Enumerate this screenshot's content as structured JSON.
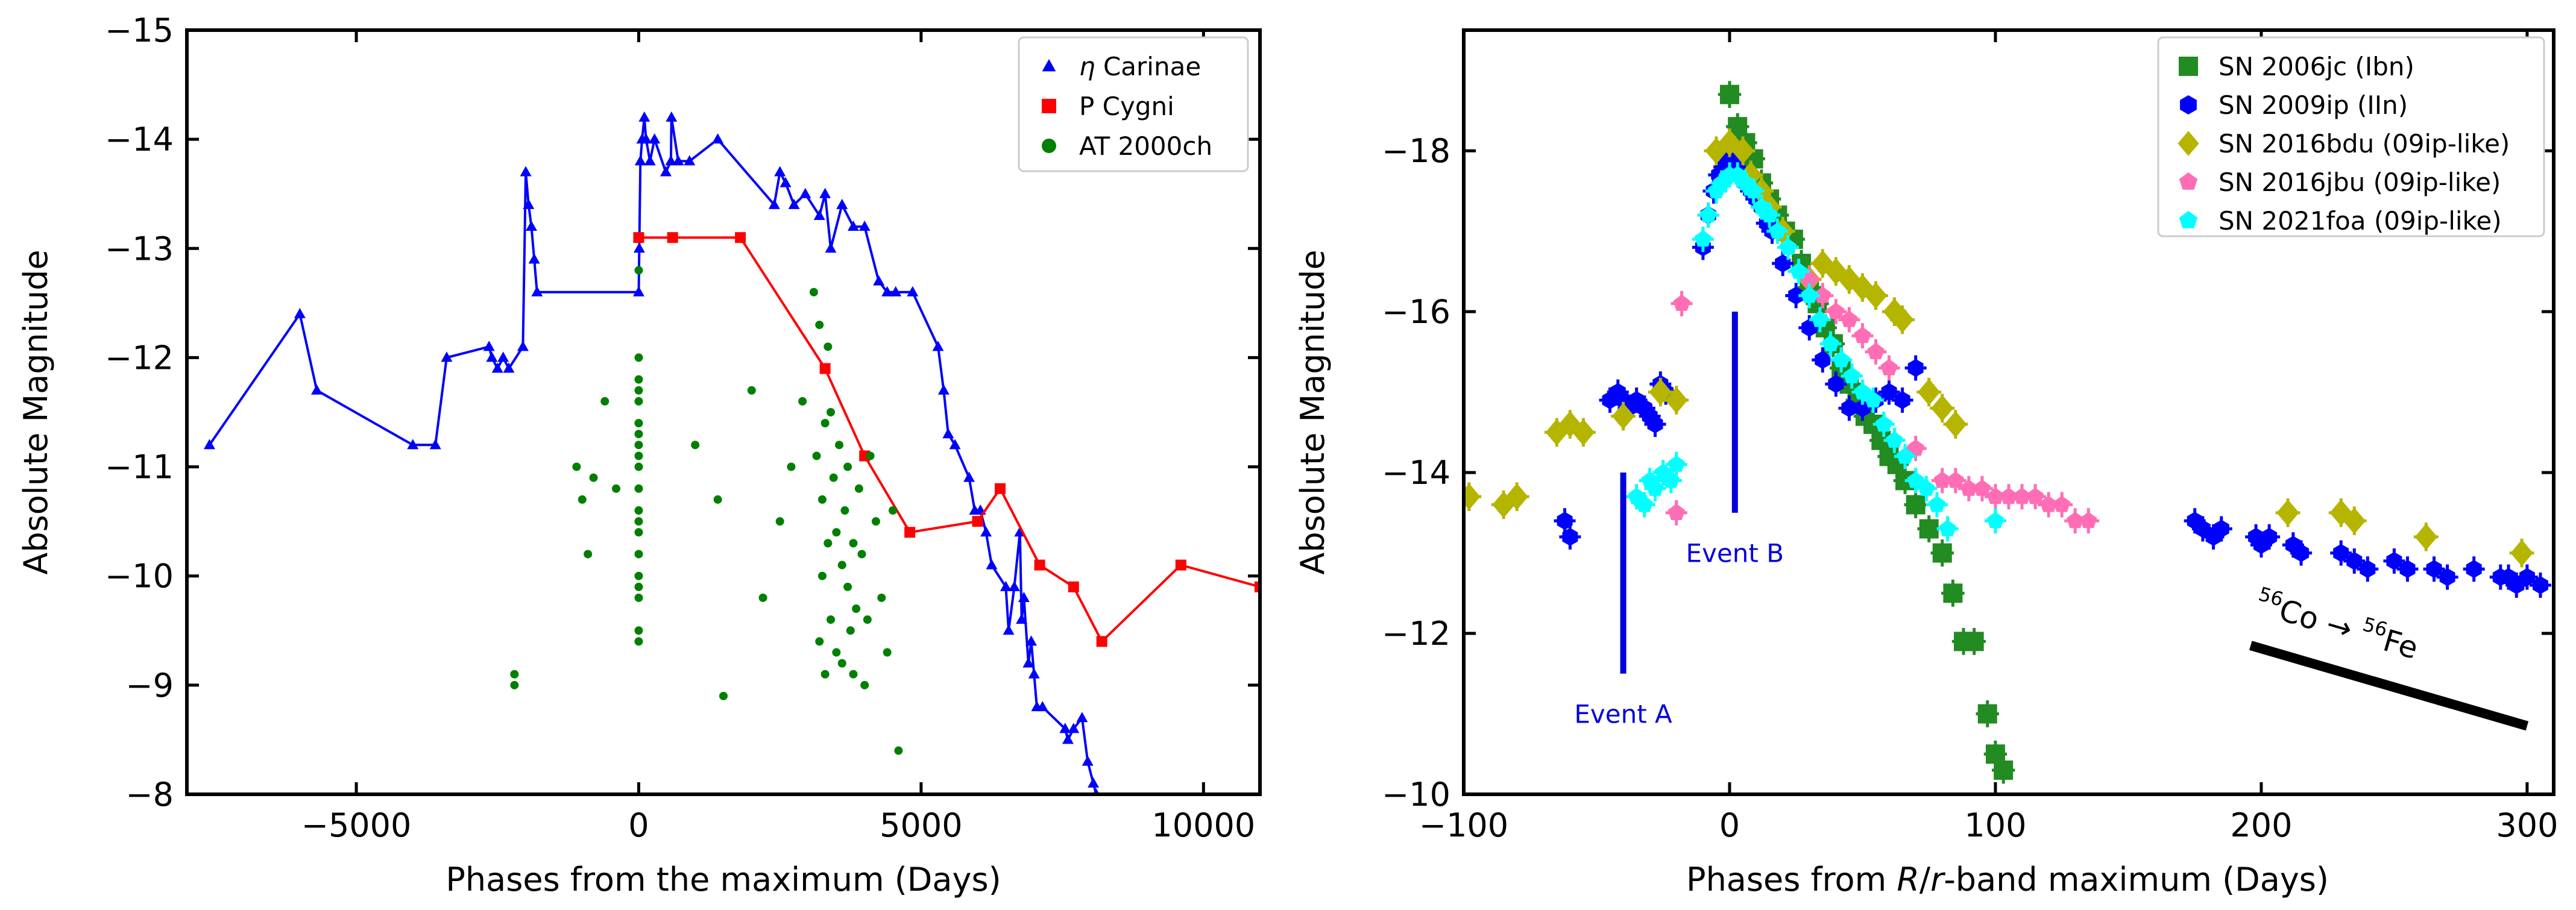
{
  "chart_data": [
    {
      "type": "scatter",
      "xlabel": "Phases from the maximum (Days)",
      "ylabel": "Absolute Magnitude",
      "xlim": [
        -8000,
        11000
      ],
      "ylim": [
        -8,
        -15
      ],
      "y_inverted": true,
      "xticks": [
        -5000,
        0,
        5000,
        10000
      ],
      "xtick_labels": [
        "−5000",
        "0",
        "5000",
        "10000"
      ],
      "yticks": [
        -15,
        -14,
        -13,
        -12,
        -11,
        -10,
        -9,
        -8
      ],
      "ytick_labels": [
        "−15",
        "−14",
        "−13",
        "−12",
        "−11",
        "−10",
        "−9",
        "−8"
      ],
      "legend_position": "top-right",
      "series": [
        {
          "name": "η Carinae",
          "marker": "triangle",
          "color": "#0000ff",
          "line": true,
          "x": [
            -7600,
            -6000,
            -5700,
            -4000,
            -3600,
            -3400,
            -2650,
            -2600,
            -2500,
            -2400,
            -2300,
            -2050,
            -2000,
            -1950,
            -1900,
            -1850,
            -1800,
            0,
            10,
            30,
            60,
            100,
            130,
            200,
            280,
            480,
            570,
            580,
            700,
            900,
            1400,
            2400,
            2500,
            2600,
            2750,
            2950,
            3200,
            3300,
            3400,
            3600,
            3800,
            4000,
            4250,
            4400,
            4550,
            4850,
            5300,
            5400,
            5480,
            5600,
            5850,
            5950,
            6050,
            6150,
            6250,
            6500,
            6550,
            6650,
            6750,
            6780,
            6820,
            6900,
            6950,
            7000,
            7050,
            7150,
            7550,
            7600,
            7700,
            7850,
            7950,
            8050,
            8100
          ],
          "y": [
            -11.2,
            -12.4,
            -11.7,
            -11.2,
            -11.2,
            -12.0,
            -12.1,
            -12.0,
            -11.9,
            -12.0,
            -11.9,
            -12.1,
            -13.7,
            -13.4,
            -13.2,
            -12.9,
            -12.6,
            -12.6,
            -13.0,
            -13.8,
            -14.0,
            -14.2,
            -14.0,
            -13.8,
            -14.0,
            -13.7,
            -13.8,
            -14.2,
            -13.8,
            -13.8,
            -14.0,
            -13.4,
            -13.7,
            -13.6,
            -13.4,
            -13.5,
            -13.3,
            -13.5,
            -13.0,
            -13.4,
            -13.2,
            -13.2,
            -12.7,
            -12.6,
            -12.6,
            -12.6,
            -12.1,
            -11.7,
            -11.3,
            -11.2,
            -10.9,
            -10.6,
            -10.6,
            -10.4,
            -10.1,
            -9.9,
            -9.5,
            -9.9,
            -10.4,
            -9.6,
            -9.8,
            -9.2,
            -9.4,
            -9.1,
            -8.8,
            -8.8,
            -8.6,
            -8.5,
            -8.6,
            -8.7,
            -8.3,
            -8.1,
            -8.0
          ]
        },
        {
          "name": "P Cygni",
          "marker": "square",
          "color": "#ff0000",
          "line": true,
          "x": [
            0,
            600,
            1800,
            3300,
            4000,
            4800,
            6000,
            6400,
            7100,
            7700,
            8200,
            9600,
            11000
          ],
          "y": [
            -13.1,
            -13.1,
            -13.1,
            -11.9,
            -11.1,
            -10.4,
            -10.5,
            -10.8,
            -10.1,
            -9.9,
            -9.4,
            -10.1,
            -9.9
          ],
          "y_note": "last point continues beyond axis edge"
        },
        {
          "name": "AT 2000ch",
          "marker": "circle",
          "color": "#008000",
          "line": false,
          "x": [
            -2200,
            -2200,
            -1100,
            -1000,
            -900,
            -800,
            -600,
            -400,
            0,
            0,
            0,
            0,
            0,
            0,
            0,
            0,
            0,
            0,
            0,
            0,
            0,
            0,
            0,
            0,
            0,
            0,
            0,
            0,
            1000,
            1400,
            1500,
            2000,
            2200,
            2500,
            2700,
            2900,
            3100,
            3150,
            3200,
            3200,
            3250,
            3250,
            3300,
            3300,
            3350,
            3350,
            3400,
            3400,
            3450,
            3500,
            3500,
            3550,
            3600,
            3600,
            3650,
            3700,
            3700,
            3750,
            3800,
            3800,
            3850,
            3900,
            3950,
            4000,
            4050,
            4100,
            4200,
            4300,
            4400,
            4500,
            4600
          ],
          "y": [
            -9.1,
            -9.0,
            -11.0,
            -10.7,
            -10.2,
            -10.9,
            -11.6,
            -10.8,
            -12.0,
            -11.7,
            -11.6,
            -11.4,
            -11.2,
            -11.0,
            -10.8,
            -10.6,
            -10.4,
            -10.2,
            -10.0,
            -9.8,
            -9.5,
            -9.4,
            -11.8,
            -11.3,
            -10.5,
            -9.9,
            -12.8,
            -11.1,
            -11.2,
            -10.7,
            -8.9,
            -11.7,
            -9.8,
            -10.5,
            -11.0,
            -11.6,
            -12.6,
            -11.1,
            -12.3,
            -9.4,
            -10.7,
            -10.0,
            -11.4,
            -9.1,
            -12.1,
            -10.3,
            -11.5,
            -9.6,
            -10.9,
            -9.3,
            -10.4,
            -11.2,
            -10.1,
            -9.2,
            -10.6,
            -9.9,
            -11.0,
            -9.5,
            -10.3,
            -9.1,
            -9.7,
            -10.8,
            -10.2,
            -9.0,
            -9.6,
            -11.1,
            -10.5,
            -9.8,
            -9.3,
            -10.6,
            -8.4
          ]
        }
      ]
    },
    {
      "type": "scatter",
      "xlabel": "Phases from R/r-band maximum (Days)",
      "xlabel_parts": [
        "Phases from ",
        "R",
        "/",
        "r",
        "-band maximum (Days)"
      ],
      "ylabel": "Absolute Magnitude",
      "xlim": [
        -100,
        310
      ],
      "ylim": [
        -10,
        -19.5
      ],
      "y_inverted": true,
      "xticks": [
        -100,
        0,
        100,
        200,
        300
      ],
      "xtick_labels": [
        "−100",
        "0",
        "100",
        "200",
        "300"
      ],
      "yticks": [
        -18,
        -16,
        -14,
        -12,
        -10
      ],
      "ytick_labels": [
        "−18",
        "−16",
        "−14",
        "−12",
        "−10"
      ],
      "legend_position": "top-right",
      "annotations": {
        "event_a": {
          "label": "Event A",
          "x": -40,
          "y_from": -11.5,
          "y_to": -14.0,
          "label_y": -11.0,
          "color": "#0000dd"
        },
        "event_b": {
          "label": "Event B",
          "x": 2,
          "y_from": -13.5,
          "y_to": -16.0,
          "label_y": -13.0,
          "color": "#0000dd"
        },
        "decay": {
          "parts": [
            "56",
            "Co → ",
            "56",
            "Fe"
          ],
          "x_from": 196,
          "y_from": -11.85,
          "x_to": 300,
          "y_to": -10.85
        }
      },
      "series": [
        {
          "name": "SN 2006jc (Ibn)",
          "marker": "square",
          "color": "#228B22",
          "x": [
            0,
            3,
            6,
            9,
            12,
            15,
            18,
            21,
            24,
            27,
            30,
            33,
            36,
            39,
            42,
            45,
            48,
            51,
            54,
            57,
            60,
            63,
            66,
            70,
            75,
            80,
            84,
            88,
            92,
            97,
            100,
            103
          ],
          "y": [
            -18.7,
            -18.3,
            -18.1,
            -17.9,
            -17.6,
            -17.4,
            -17.2,
            -17.0,
            -16.9,
            -16.6,
            -16.3,
            -16.1,
            -15.8,
            -15.6,
            -15.3,
            -15.1,
            -14.9,
            -14.7,
            -14.6,
            -14.4,
            -14.2,
            -14.1,
            -13.9,
            -13.6,
            -13.3,
            -13.0,
            -12.5,
            -11.9,
            -11.9,
            -11.0,
            -10.5,
            -10.3
          ]
        },
        {
          "name": "SN 2009ip (IIn)",
          "marker": "hexagon",
          "color": "#0000ff",
          "x": [
            -62,
            -60,
            -45,
            -42,
            -40,
            -38,
            -35,
            -32,
            -30,
            -28,
            -26,
            -24,
            -10,
            -8,
            -6,
            -4,
            -2,
            0,
            2,
            4,
            6,
            8,
            10,
            12,
            14,
            16,
            20,
            25,
            30,
            35,
            40,
            45,
            50,
            55,
            60,
            65,
            70,
            175,
            178,
            182,
            185,
            198,
            200,
            203,
            212,
            215,
            230,
            235,
            240,
            250,
            255,
            265,
            270,
            280,
            290,
            293,
            296,
            300,
            305
          ],
          "y": [
            -13.4,
            -13.2,
            -14.9,
            -15.0,
            -14.9,
            -14.8,
            -14.9,
            -14.8,
            -14.7,
            -14.6,
            -15.1,
            -15.0,
            -16.8,
            -17.2,
            -17.5,
            -17.7,
            -17.8,
            -17.9,
            -17.8,
            -17.7,
            -17.6,
            -17.5,
            -17.4,
            -17.3,
            -17.1,
            -17.0,
            -16.6,
            -16.2,
            -15.8,
            -15.4,
            -15.1,
            -14.8,
            -14.8,
            -14.9,
            -15.0,
            -14.9,
            -15.3,
            -13.4,
            -13.3,
            -13.2,
            -13.3,
            -13.2,
            -13.1,
            -13.2,
            -13.1,
            -13.0,
            -13.0,
            -12.9,
            -12.8,
            -12.9,
            -12.8,
            -12.8,
            -12.7,
            -12.8,
            -12.7,
            -12.7,
            -12.6,
            -12.7,
            -12.6
          ]
        },
        {
          "name": "SN 2016bdu (09ip-like)",
          "marker": "diamond",
          "color": "#b5b500",
          "x": [
            -98,
            -85,
            -80,
            -65,
            -60,
            -55,
            -40,
            -26,
            -20,
            -5,
            0,
            5,
            8,
            12,
            15,
            20,
            30,
            35,
            40,
            45,
            50,
            55,
            62,
            65,
            75,
            80,
            85,
            210,
            230,
            235,
            262,
            298
          ],
          "y": [
            -13.7,
            -13.6,
            -13.7,
            -14.5,
            -14.6,
            -14.5,
            -14.7,
            -15.0,
            -14.9,
            -18.0,
            -18.1,
            -18.0,
            -17.7,
            -17.5,
            -17.3,
            -17.0,
            -16.4,
            -16.6,
            -16.5,
            -16.4,
            -16.3,
            -16.2,
            -16.0,
            -15.9,
            -15.0,
            -14.8,
            -14.6,
            -13.5,
            -13.5,
            -13.4,
            -13.2,
            -13.0
          ]
        },
        {
          "name": "SN 2016jbu (09ip-like)",
          "marker": "pentagon",
          "color": "#ff6eb4",
          "x": [
            -20,
            -18,
            30,
            35,
            40,
            45,
            50,
            55,
            60,
            70,
            80,
            85,
            90,
            95,
            100,
            105,
            110,
            115,
            120,
            125,
            130,
            135
          ],
          "y": [
            -13.5,
            -16.1,
            -16.4,
            -16.2,
            -16.0,
            -15.9,
            -15.7,
            -15.5,
            -15.3,
            -14.3,
            -13.9,
            -13.9,
            -13.8,
            -13.8,
            -13.7,
            -13.7,
            -13.7,
            -13.7,
            -13.6,
            -13.6,
            -13.4,
            -13.4
          ],
          "y_note": "approximate"
        },
        {
          "name": "SN 2021foa (09ip-like)",
          "marker": "pentagon",
          "color": "#00ffff",
          "x": [
            -35,
            -32,
            -30,
            -28,
            -25,
            -22,
            -20,
            -10,
            -8,
            -5,
            -3,
            0,
            3,
            6,
            9,
            12,
            15,
            18,
            22,
            26,
            30,
            34,
            38,
            42,
            46,
            50,
            54,
            58,
            62,
            66,
            70,
            74,
            78,
            82,
            100
          ],
          "y": [
            -13.7,
            -13.6,
            -13.9,
            -13.8,
            -14.0,
            -13.9,
            -14.1,
            -16.9,
            -17.2,
            -17.5,
            -17.6,
            -17.7,
            -17.7,
            -17.6,
            -17.5,
            -17.3,
            -17.2,
            -17.0,
            -16.8,
            -16.5,
            -16.2,
            -15.9,
            -15.6,
            -15.4,
            -15.2,
            -15.0,
            -14.9,
            -14.6,
            -14.4,
            -14.2,
            -13.9,
            -13.8,
            -13.6,
            -13.3,
            -13.4
          ]
        }
      ]
    }
  ]
}
